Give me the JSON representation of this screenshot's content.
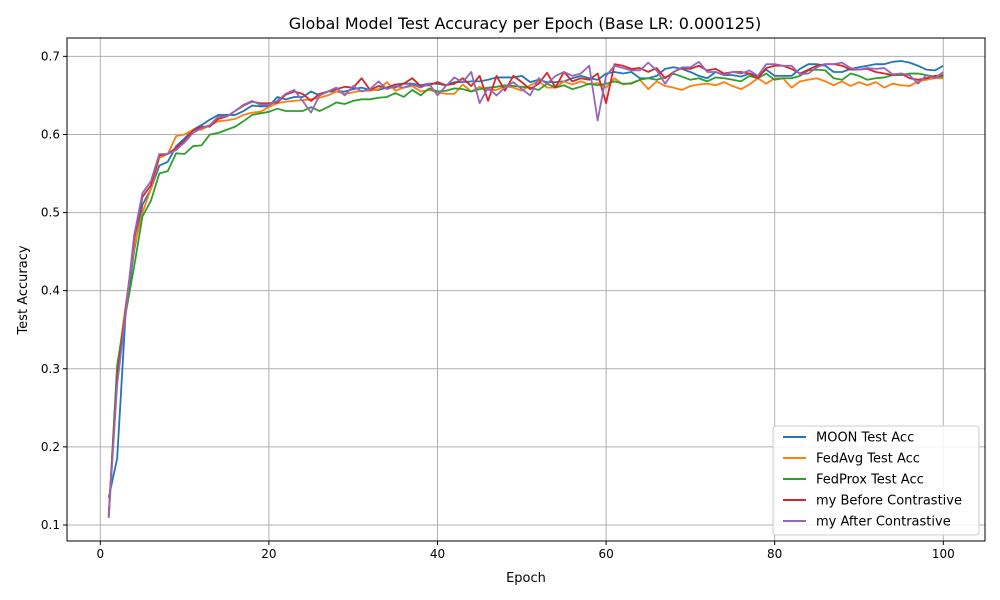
{
  "chart_data": {
    "type": "line",
    "title": "Global Model Test Accuracy per Epoch (Base LR: 0.000125)",
    "xlabel": "Epoch",
    "ylabel": "Test Accuracy",
    "xlim": [
      -3.95,
      104.95
    ],
    "ylim": [
      0.0795,
      0.7235
    ],
    "xticks": [
      0,
      20,
      40,
      60,
      80,
      100
    ],
    "yticks": [
      0.1,
      0.2,
      0.3,
      0.4,
      0.5,
      0.6,
      0.7
    ],
    "xtick_labels": [
      "0",
      "20",
      "40",
      "60",
      "80",
      "100"
    ],
    "ytick_labels": [
      "0.1",
      "0.2",
      "0.3",
      "0.4",
      "0.5",
      "0.6",
      "0.7"
    ],
    "grid": true,
    "legend_position": "lower right",
    "x": [
      1,
      2,
      3,
      4,
      5,
      6,
      7,
      8,
      9,
      10,
      11,
      12,
      13,
      14,
      15,
      16,
      17,
      18,
      19,
      20,
      21,
      22,
      23,
      24,
      25,
      26,
      27,
      28,
      29,
      30,
      31,
      32,
      33,
      34,
      35,
      36,
      37,
      38,
      39,
      40,
      41,
      42,
      43,
      44,
      45,
      46,
      47,
      48,
      49,
      50,
      51,
      52,
      53,
      54,
      55,
      56,
      57,
      58,
      59,
      60,
      61,
      62,
      63,
      64,
      65,
      66,
      67,
      68,
      69,
      70,
      71,
      72,
      73,
      74,
      75,
      76,
      77,
      78,
      79,
      80,
      81,
      82,
      83,
      84,
      85,
      86,
      87,
      88,
      89,
      90,
      91,
      92,
      93,
      94,
      95,
      96,
      97,
      98,
      99,
      100
    ],
    "series": [
      {
        "name": "MOON Test Acc",
        "color": "#1f77b4",
        "values": [
          0.135,
          0.185,
          0.37,
          0.45,
          0.51,
          0.53,
          0.56,
          0.565,
          0.585,
          0.595,
          0.606,
          0.612,
          0.619,
          0.625,
          0.625,
          0.625,
          0.63,
          0.637,
          0.636,
          0.636,
          0.648,
          0.645,
          0.648,
          0.648,
          0.655,
          0.65,
          0.655,
          0.655,
          0.655,
          0.658,
          0.66,
          0.657,
          0.657,
          0.66,
          0.66,
          0.665,
          0.665,
          0.663,
          0.665,
          0.665,
          0.663,
          0.667,
          0.667,
          0.668,
          0.668,
          0.67,
          0.673,
          0.673,
          0.673,
          0.675,
          0.667,
          0.67,
          0.667,
          0.667,
          0.668,
          0.672,
          0.675,
          0.672,
          0.67,
          0.678,
          0.68,
          0.678,
          0.68,
          0.672,
          0.672,
          0.675,
          0.684,
          0.686,
          0.684,
          0.68,
          0.675,
          0.672,
          0.68,
          0.676,
          0.676,
          0.674,
          0.678,
          0.675,
          0.683,
          0.675,
          0.675,
          0.675,
          0.684,
          0.69,
          0.69,
          0.688,
          0.68,
          0.68,
          0.684,
          0.686,
          0.688,
          0.69,
          0.69,
          0.693,
          0.694,
          0.692,
          0.688,
          0.683,
          0.682,
          0.688
        ]
      },
      {
        "name": "FedAvg Test Acc",
        "color": "#ff7f0e",
        "values": [
          0.112,
          0.3,
          0.38,
          0.455,
          0.5,
          0.53,
          0.57,
          0.575,
          0.598,
          0.6,
          0.606,
          0.606,
          0.612,
          0.617,
          0.618,
          0.62,
          0.625,
          0.628,
          0.629,
          0.635,
          0.64,
          0.642,
          0.643,
          0.644,
          0.645,
          0.647,
          0.65,
          0.655,
          0.652,
          0.654,
          0.656,
          0.656,
          0.658,
          0.667,
          0.656,
          0.66,
          0.662,
          0.655,
          0.657,
          0.654,
          0.652,
          0.652,
          0.664,
          0.655,
          0.661,
          0.657,
          0.657,
          0.662,
          0.66,
          0.656,
          0.663,
          0.668,
          0.66,
          0.66,
          0.668,
          0.664,
          0.668,
          0.664,
          0.666,
          0.66,
          0.672,
          0.664,
          0.666,
          0.67,
          0.658,
          0.668,
          0.662,
          0.66,
          0.657,
          0.662,
          0.664,
          0.665,
          0.663,
          0.667,
          0.662,
          0.658,
          0.664,
          0.672,
          0.665,
          0.672,
          0.672,
          0.66,
          0.668,
          0.67,
          0.672,
          0.668,
          0.663,
          0.668,
          0.662,
          0.667,
          0.663,
          0.667,
          0.66,
          0.665,
          0.663,
          0.662,
          0.668,
          0.67,
          0.672,
          0.672
        ]
      },
      {
        "name": "FedProx Test Acc",
        "color": "#2ca02c",
        "values": [
          0.11,
          0.305,
          0.37,
          0.43,
          0.495,
          0.515,
          0.55,
          0.553,
          0.576,
          0.575,
          0.585,
          0.586,
          0.6,
          0.602,
          0.606,
          0.61,
          0.617,
          0.625,
          0.627,
          0.629,
          0.633,
          0.63,
          0.63,
          0.63,
          0.635,
          0.63,
          0.635,
          0.641,
          0.639,
          0.643,
          0.645,
          0.645,
          0.647,
          0.648,
          0.653,
          0.648,
          0.657,
          0.65,
          0.659,
          0.655,
          0.656,
          0.659,
          0.658,
          0.655,
          0.658,
          0.66,
          0.661,
          0.663,
          0.662,
          0.661,
          0.66,
          0.657,
          0.665,
          0.66,
          0.663,
          0.658,
          0.661,
          0.665,
          0.663,
          0.665,
          0.668,
          0.665,
          0.665,
          0.67,
          0.672,
          0.67,
          0.673,
          0.678,
          0.674,
          0.67,
          0.672,
          0.668,
          0.673,
          0.672,
          0.67,
          0.668,
          0.675,
          0.672,
          0.678,
          0.67,
          0.672,
          0.672,
          0.675,
          0.682,
          0.683,
          0.682,
          0.672,
          0.67,
          0.678,
          0.675,
          0.67,
          0.672,
          0.673,
          0.676,
          0.676,
          0.678,
          0.678,
          0.676,
          0.674,
          0.674
        ]
      },
      {
        "name": "my Before Contrastive",
        "color": "#d62728",
        "values": [
          0.113,
          0.29,
          0.375,
          0.465,
          0.52,
          0.535,
          0.573,
          0.575,
          0.583,
          0.592,
          0.605,
          0.61,
          0.61,
          0.62,
          0.623,
          0.63,
          0.637,
          0.642,
          0.64,
          0.64,
          0.641,
          0.651,
          0.655,
          0.652,
          0.643,
          0.652,
          0.655,
          0.658,
          0.661,
          0.66,
          0.672,
          0.657,
          0.662,
          0.66,
          0.664,
          0.665,
          0.672,
          0.662,
          0.663,
          0.667,
          0.663,
          0.665,
          0.672,
          0.662,
          0.675,
          0.643,
          0.675,
          0.656,
          0.675,
          0.667,
          0.658,
          0.665,
          0.679,
          0.66,
          0.68,
          0.668,
          0.672,
          0.67,
          0.678,
          0.64,
          0.69,
          0.688,
          0.684,
          0.685,
          0.68,
          0.685,
          0.672,
          0.68,
          0.685,
          0.684,
          0.688,
          0.682,
          0.684,
          0.678,
          0.68,
          0.68,
          0.678,
          0.672,
          0.685,
          0.688,
          0.688,
          0.684,
          0.678,
          0.683,
          0.688,
          0.69,
          0.69,
          0.688,
          0.683,
          0.683,
          0.684,
          0.68,
          0.678,
          0.676,
          0.678,
          0.672,
          0.67,
          0.672,
          0.675,
          0.676
        ]
      },
      {
        "name": "my After Contrastive",
        "color": "#9467bd",
        "values": [
          0.109,
          0.28,
          0.37,
          0.47,
          0.525,
          0.54,
          0.575,
          0.575,
          0.58,
          0.59,
          0.602,
          0.608,
          0.612,
          0.623,
          0.623,
          0.63,
          0.638,
          0.643,
          0.638,
          0.638,
          0.643,
          0.652,
          0.657,
          0.643,
          0.628,
          0.65,
          0.655,
          0.66,
          0.65,
          0.662,
          0.655,
          0.658,
          0.668,
          0.658,
          0.662,
          0.66,
          0.664,
          0.66,
          0.665,
          0.65,
          0.662,
          0.673,
          0.667,
          0.68,
          0.64,
          0.66,
          0.65,
          0.66,
          0.667,
          0.658,
          0.65,
          0.672,
          0.665,
          0.675,
          0.68,
          0.675,
          0.678,
          0.688,
          0.618,
          0.675,
          0.688,
          0.685,
          0.682,
          0.682,
          0.692,
          0.682,
          0.665,
          0.68,
          0.686,
          0.686,
          0.693,
          0.68,
          0.68,
          0.676,
          0.68,
          0.678,
          0.682,
          0.675,
          0.69,
          0.69,
          0.688,
          0.688,
          0.677,
          0.678,
          0.686,
          0.69,
          0.69,
          0.692,
          0.685,
          0.683,
          0.685,
          0.684,
          0.685,
          0.677,
          0.678,
          0.676,
          0.665,
          0.676,
          0.672,
          0.68
        ]
      }
    ]
  }
}
